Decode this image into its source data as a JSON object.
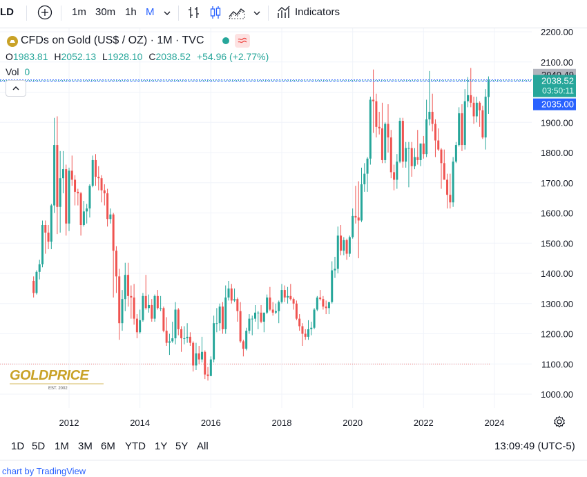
{
  "toolbar": {
    "symbol_fragment": "LD",
    "intervals": [
      "1m",
      "30m",
      "1h",
      "M"
    ],
    "active_interval": "M",
    "indicators_label": "Indicators"
  },
  "legend": {
    "title": "CFDs on Gold (US$ / OZ) · 1M · TVC",
    "open_label": "O",
    "open": "1983.81",
    "high_label": "H",
    "high": "2052.13",
    "low_label": "L",
    "low": "1928.10",
    "close_label": "C",
    "close": "2038.52",
    "change": "+54.96 (+2.77%)",
    "vol_label": "Vol",
    "vol": "0"
  },
  "price_tags": {
    "high_line": "2040.49",
    "last_price": "2038.52",
    "countdown": "03:50:11",
    "crosshair": "2035.00"
  },
  "watermark": {
    "brand": "GOLDPRICE",
    "sub": "EST. 2002"
  },
  "bottom": {
    "ranges": [
      "1D",
      "5D",
      "1M",
      "3M",
      "6M",
      "YTD",
      "1Y",
      "5Y",
      "All"
    ],
    "time": "13:09:49 (UTC-5)"
  },
  "footer": {
    "credit": "chart by TradingView"
  },
  "colors": {
    "up": "#26a69a",
    "down": "#ef5350",
    "accent": "#2962ff",
    "grid": "#f0f3fa"
  },
  "chart_data": {
    "type": "candlestick",
    "title": "CFDs on Gold (US$ / OZ) · 1M · TVC",
    "x_ticks": [
      "2012",
      "2014",
      "2016",
      "2018",
      "2020",
      "2022",
      "2024"
    ],
    "y_ticks": [
      "1000.00",
      "1100.00",
      "1200.00",
      "1300.00",
      "1400.00",
      "1500.00",
      "1600.00",
      "1700.00",
      "1800.00",
      "1900.00",
      "2000.00",
      "2100.00",
      "2200.00"
    ],
    "ylim": [
      1000,
      2200
    ],
    "horizontal_levels": [
      1100
    ],
    "candles": [
      {
        "t": "2011-01",
        "o": 1375,
        "h": 1390,
        "l": 1320,
        "c": 1335
      },
      {
        "t": "2011-02",
        "o": 1335,
        "h": 1410,
        "l": 1330,
        "c": 1405
      },
      {
        "t": "2011-03",
        "o": 1405,
        "h": 1445,
        "l": 1380,
        "c": 1430
      },
      {
        "t": "2011-04",
        "o": 1430,
        "h": 1575,
        "l": 1420,
        "c": 1560
      },
      {
        "t": "2011-05",
        "o": 1560,
        "h": 1575,
        "l": 1465,
        "c": 1535
      },
      {
        "t": "2011-06",
        "o": 1535,
        "h": 1560,
        "l": 1480,
        "c": 1505
      },
      {
        "t": "2011-07",
        "o": 1505,
        "h": 1630,
        "l": 1480,
        "c": 1625
      },
      {
        "t": "2011-08",
        "o": 1625,
        "h": 1915,
        "l": 1600,
        "c": 1825
      },
      {
        "t": "2011-09",
        "o": 1825,
        "h": 1920,
        "l": 1530,
        "c": 1620
      },
      {
        "t": "2011-10",
        "o": 1620,
        "h": 1805,
        "l": 1535,
        "c": 1715
      },
      {
        "t": "2011-11",
        "o": 1715,
        "h": 1805,
        "l": 1665,
        "c": 1745
      },
      {
        "t": "2011-12",
        "o": 1745,
        "h": 1760,
        "l": 1525,
        "c": 1565
      },
      {
        "t": "2012-01",
        "o": 1565,
        "h": 1750,
        "l": 1540,
        "c": 1740
      },
      {
        "t": "2012-02",
        "o": 1740,
        "h": 1790,
        "l": 1690,
        "c": 1710
      },
      {
        "t": "2012-03",
        "o": 1710,
        "h": 1725,
        "l": 1625,
        "c": 1670
      },
      {
        "t": "2012-04",
        "o": 1670,
        "h": 1680,
        "l": 1625,
        "c": 1665
      },
      {
        "t": "2012-05",
        "o": 1665,
        "h": 1670,
        "l": 1525,
        "c": 1560
      },
      {
        "t": "2012-06",
        "o": 1560,
        "h": 1640,
        "l": 1555,
        "c": 1605
      },
      {
        "t": "2012-07",
        "o": 1605,
        "h": 1630,
        "l": 1565,
        "c": 1615
      },
      {
        "t": "2012-08",
        "o": 1615,
        "h": 1695,
        "l": 1585,
        "c": 1690
      },
      {
        "t": "2012-09",
        "o": 1690,
        "h": 1790,
        "l": 1685,
        "c": 1775
      },
      {
        "t": "2012-10",
        "o": 1775,
        "h": 1795,
        "l": 1690,
        "c": 1720
      },
      {
        "t": "2012-11",
        "o": 1720,
        "h": 1755,
        "l": 1675,
        "c": 1715
      },
      {
        "t": "2012-12",
        "o": 1715,
        "h": 1725,
        "l": 1635,
        "c": 1675
      },
      {
        "t": "2013-01",
        "o": 1675,
        "h": 1695,
        "l": 1625,
        "c": 1665
      },
      {
        "t": "2013-02",
        "o": 1665,
        "h": 1680,
        "l": 1555,
        "c": 1580
      },
      {
        "t": "2013-03",
        "o": 1580,
        "h": 1615,
        "l": 1565,
        "c": 1595
      },
      {
        "t": "2013-04",
        "o": 1595,
        "h": 1600,
        "l": 1320,
        "c": 1475
      },
      {
        "t": "2013-05",
        "o": 1475,
        "h": 1490,
        "l": 1335,
        "c": 1390
      },
      {
        "t": "2013-06",
        "o": 1390,
        "h": 1415,
        "l": 1180,
        "c": 1235
      },
      {
        "t": "2013-07",
        "o": 1235,
        "h": 1345,
        "l": 1210,
        "c": 1315
      },
      {
        "t": "2013-08",
        "o": 1315,
        "h": 1435,
        "l": 1275,
        "c": 1395
      },
      {
        "t": "2013-09",
        "o": 1395,
        "h": 1435,
        "l": 1290,
        "c": 1325
      },
      {
        "t": "2013-10",
        "o": 1325,
        "h": 1360,
        "l": 1250,
        "c": 1320
      },
      {
        "t": "2013-11",
        "o": 1320,
        "h": 1365,
        "l": 1230,
        "c": 1250
      },
      {
        "t": "2013-12",
        "o": 1250,
        "h": 1265,
        "l": 1185,
        "c": 1205
      },
      {
        "t": "2014-01",
        "o": 1205,
        "h": 1280,
        "l": 1200,
        "c": 1245
      },
      {
        "t": "2014-02",
        "o": 1245,
        "h": 1335,
        "l": 1240,
        "c": 1325
      },
      {
        "t": "2014-03",
        "o": 1325,
        "h": 1395,
        "l": 1280,
        "c": 1285
      },
      {
        "t": "2014-04",
        "o": 1285,
        "h": 1330,
        "l": 1270,
        "c": 1295
      },
      {
        "t": "2014-05",
        "o": 1295,
        "h": 1315,
        "l": 1240,
        "c": 1250
      },
      {
        "t": "2014-06",
        "o": 1250,
        "h": 1330,
        "l": 1240,
        "c": 1325
      },
      {
        "t": "2014-07",
        "o": 1325,
        "h": 1345,
        "l": 1280,
        "c": 1285
      },
      {
        "t": "2014-08",
        "o": 1285,
        "h": 1325,
        "l": 1275,
        "c": 1285
      },
      {
        "t": "2014-09",
        "o": 1285,
        "h": 1290,
        "l": 1205,
        "c": 1210
      },
      {
        "t": "2014-10",
        "o": 1210,
        "h": 1255,
        "l": 1160,
        "c": 1170
      },
      {
        "t": "2014-11",
        "o": 1170,
        "h": 1200,
        "l": 1130,
        "c": 1175
      },
      {
        "t": "2014-12",
        "o": 1175,
        "h": 1240,
        "l": 1170,
        "c": 1185
      },
      {
        "t": "2015-01",
        "o": 1185,
        "h": 1305,
        "l": 1165,
        "c": 1280
      },
      {
        "t": "2015-02",
        "o": 1280,
        "h": 1285,
        "l": 1195,
        "c": 1215
      },
      {
        "t": "2015-03",
        "o": 1215,
        "h": 1225,
        "l": 1140,
        "c": 1185
      },
      {
        "t": "2015-04",
        "o": 1185,
        "h": 1225,
        "l": 1165,
        "c": 1185
      },
      {
        "t": "2015-05",
        "o": 1185,
        "h": 1235,
        "l": 1170,
        "c": 1190
      },
      {
        "t": "2015-06",
        "o": 1190,
        "h": 1205,
        "l": 1160,
        "c": 1170
      },
      {
        "t": "2015-07",
        "o": 1170,
        "h": 1175,
        "l": 1075,
        "c": 1095
      },
      {
        "t": "2015-08",
        "o": 1095,
        "h": 1170,
        "l": 1080,
        "c": 1135
      },
      {
        "t": "2015-09",
        "o": 1135,
        "h": 1160,
        "l": 1100,
        "c": 1115
      },
      {
        "t": "2015-10",
        "o": 1115,
        "h": 1190,
        "l": 1105,
        "c": 1140
      },
      {
        "t": "2015-11",
        "o": 1140,
        "h": 1145,
        "l": 1050,
        "c": 1065
      },
      {
        "t": "2015-12",
        "o": 1065,
        "h": 1090,
        "l": 1045,
        "c": 1060
      },
      {
        "t": "2016-01",
        "o": 1060,
        "h": 1125,
        "l": 1060,
        "c": 1115
      },
      {
        "t": "2016-02",
        "o": 1115,
        "h": 1260,
        "l": 1105,
        "c": 1235
      },
      {
        "t": "2016-03",
        "o": 1235,
        "h": 1285,
        "l": 1205,
        "c": 1235
      },
      {
        "t": "2016-04",
        "o": 1235,
        "h": 1300,
        "l": 1210,
        "c": 1290
      },
      {
        "t": "2016-05",
        "o": 1290,
        "h": 1305,
        "l": 1200,
        "c": 1215
      },
      {
        "t": "2016-06",
        "o": 1215,
        "h": 1360,
        "l": 1200,
        "c": 1320
      },
      {
        "t": "2016-07",
        "o": 1320,
        "h": 1375,
        "l": 1310,
        "c": 1350
      },
      {
        "t": "2016-08",
        "o": 1350,
        "h": 1365,
        "l": 1300,
        "c": 1310
      },
      {
        "t": "2016-09",
        "o": 1310,
        "h": 1350,
        "l": 1305,
        "c": 1315
      },
      {
        "t": "2016-10",
        "o": 1315,
        "h": 1320,
        "l": 1240,
        "c": 1275
      },
      {
        "t": "2016-11",
        "o": 1275,
        "h": 1305,
        "l": 1170,
        "c": 1175
      },
      {
        "t": "2016-12",
        "o": 1175,
        "h": 1180,
        "l": 1125,
        "c": 1150
      },
      {
        "t": "2017-01",
        "o": 1150,
        "h": 1220,
        "l": 1145,
        "c": 1210
      },
      {
        "t": "2017-02",
        "o": 1210,
        "h": 1265,
        "l": 1200,
        "c": 1250
      },
      {
        "t": "2017-03",
        "o": 1250,
        "h": 1260,
        "l": 1195,
        "c": 1250
      },
      {
        "t": "2017-04",
        "o": 1250,
        "h": 1295,
        "l": 1240,
        "c": 1270
      },
      {
        "t": "2017-05",
        "o": 1270,
        "h": 1275,
        "l": 1215,
        "c": 1270
      },
      {
        "t": "2017-06",
        "o": 1270,
        "h": 1295,
        "l": 1235,
        "c": 1240
      },
      {
        "t": "2017-07",
        "o": 1240,
        "h": 1270,
        "l": 1205,
        "c": 1270
      },
      {
        "t": "2017-08",
        "o": 1270,
        "h": 1330,
        "l": 1265,
        "c": 1320
      },
      {
        "t": "2017-09",
        "o": 1320,
        "h": 1355,
        "l": 1275,
        "c": 1280
      },
      {
        "t": "2017-10",
        "o": 1280,
        "h": 1305,
        "l": 1260,
        "c": 1270
      },
      {
        "t": "2017-11",
        "o": 1270,
        "h": 1300,
        "l": 1265,
        "c": 1275
      },
      {
        "t": "2017-12",
        "o": 1275,
        "h": 1310,
        "l": 1235,
        "c": 1305
      },
      {
        "t": "2018-01",
        "o": 1305,
        "h": 1365,
        "l": 1300,
        "c": 1345
      },
      {
        "t": "2018-02",
        "o": 1345,
        "h": 1360,
        "l": 1305,
        "c": 1320
      },
      {
        "t": "2018-03",
        "o": 1320,
        "h": 1355,
        "l": 1300,
        "c": 1325
      },
      {
        "t": "2018-04",
        "o": 1325,
        "h": 1365,
        "l": 1310,
        "c": 1315
      },
      {
        "t": "2018-05",
        "o": 1315,
        "h": 1320,
        "l": 1280,
        "c": 1300
      },
      {
        "t": "2018-06",
        "o": 1300,
        "h": 1310,
        "l": 1245,
        "c": 1250
      },
      {
        "t": "2018-07",
        "o": 1250,
        "h": 1265,
        "l": 1210,
        "c": 1225
      },
      {
        "t": "2018-08",
        "o": 1225,
        "h": 1235,
        "l": 1160,
        "c": 1200
      },
      {
        "t": "2018-09",
        "o": 1200,
        "h": 1215,
        "l": 1180,
        "c": 1190
      },
      {
        "t": "2018-10",
        "o": 1190,
        "h": 1245,
        "l": 1180,
        "c": 1215
      },
      {
        "t": "2018-11",
        "o": 1215,
        "h": 1240,
        "l": 1195,
        "c": 1220
      },
      {
        "t": "2018-12",
        "o": 1220,
        "h": 1285,
        "l": 1215,
        "c": 1280
      },
      {
        "t": "2019-01",
        "o": 1280,
        "h": 1325,
        "l": 1275,
        "c": 1320
      },
      {
        "t": "2019-02",
        "o": 1320,
        "h": 1345,
        "l": 1310,
        "c": 1315
      },
      {
        "t": "2019-03",
        "o": 1315,
        "h": 1325,
        "l": 1280,
        "c": 1290
      },
      {
        "t": "2019-04",
        "o": 1290,
        "h": 1310,
        "l": 1265,
        "c": 1285
      },
      {
        "t": "2019-05",
        "o": 1285,
        "h": 1305,
        "l": 1265,
        "c": 1305
      },
      {
        "t": "2019-06",
        "o": 1305,
        "h": 1440,
        "l": 1300,
        "c": 1410
      },
      {
        "t": "2019-07",
        "o": 1410,
        "h": 1455,
        "l": 1385,
        "c": 1415
      },
      {
        "t": "2019-08",
        "o": 1415,
        "h": 1555,
        "l": 1400,
        "c": 1525
      },
      {
        "t": "2019-09",
        "o": 1525,
        "h": 1560,
        "l": 1460,
        "c": 1475
      },
      {
        "t": "2019-10",
        "o": 1475,
        "h": 1520,
        "l": 1460,
        "c": 1510
      },
      {
        "t": "2019-11",
        "o": 1510,
        "h": 1515,
        "l": 1445,
        "c": 1465
      },
      {
        "t": "2019-12",
        "o": 1465,
        "h": 1525,
        "l": 1455,
        "c": 1520
      },
      {
        "t": "2020-01",
        "o": 1520,
        "h": 1615,
        "l": 1515,
        "c": 1590
      },
      {
        "t": "2020-02",
        "o": 1590,
        "h": 1690,
        "l": 1565,
        "c": 1585
      },
      {
        "t": "2020-03",
        "o": 1585,
        "h": 1705,
        "l": 1450,
        "c": 1575
      },
      {
        "t": "2020-04",
        "o": 1575,
        "h": 1750,
        "l": 1570,
        "c": 1695
      },
      {
        "t": "2020-05",
        "o": 1695,
        "h": 1765,
        "l": 1670,
        "c": 1730
      },
      {
        "t": "2020-06",
        "o": 1730,
        "h": 1785,
        "l": 1670,
        "c": 1780
      },
      {
        "t": "2020-07",
        "o": 1780,
        "h": 1985,
        "l": 1760,
        "c": 1975
      },
      {
        "t": "2020-08",
        "o": 1975,
        "h": 2075,
        "l": 1865,
        "c": 1970
      },
      {
        "t": "2020-09",
        "o": 1970,
        "h": 1995,
        "l": 1850,
        "c": 1885
      },
      {
        "t": "2020-10",
        "o": 1885,
        "h": 1935,
        "l": 1860,
        "c": 1880
      },
      {
        "t": "2020-11",
        "o": 1880,
        "h": 1965,
        "l": 1765,
        "c": 1775
      },
      {
        "t": "2020-12",
        "o": 1775,
        "h": 1900,
        "l": 1765,
        "c": 1895
      },
      {
        "t": "2021-01",
        "o": 1895,
        "h": 1960,
        "l": 1800,
        "c": 1850
      },
      {
        "t": "2021-02",
        "o": 1850,
        "h": 1875,
        "l": 1715,
        "c": 1735
      },
      {
        "t": "2021-03",
        "o": 1735,
        "h": 1760,
        "l": 1675,
        "c": 1710
      },
      {
        "t": "2021-04",
        "o": 1710,
        "h": 1795,
        "l": 1680,
        "c": 1770
      },
      {
        "t": "2021-05",
        "o": 1770,
        "h": 1915,
        "l": 1765,
        "c": 1905
      },
      {
        "t": "2021-06",
        "o": 1905,
        "h": 1915,
        "l": 1750,
        "c": 1770
      },
      {
        "t": "2021-07",
        "o": 1770,
        "h": 1835,
        "l": 1750,
        "c": 1815
      },
      {
        "t": "2021-08",
        "o": 1815,
        "h": 1835,
        "l": 1685,
        "c": 1815
      },
      {
        "t": "2021-09",
        "o": 1815,
        "h": 1835,
        "l": 1720,
        "c": 1755
      },
      {
        "t": "2021-10",
        "o": 1755,
        "h": 1815,
        "l": 1745,
        "c": 1785
      },
      {
        "t": "2021-11",
        "o": 1785,
        "h": 1875,
        "l": 1760,
        "c": 1775
      },
      {
        "t": "2021-12",
        "o": 1775,
        "h": 1830,
        "l": 1755,
        "c": 1830
      },
      {
        "t": "2022-01",
        "o": 1830,
        "h": 1855,
        "l": 1780,
        "c": 1795
      },
      {
        "t": "2022-02",
        "o": 1795,
        "h": 1975,
        "l": 1785,
        "c": 1910
      },
      {
        "t": "2022-03",
        "o": 1910,
        "h": 2070,
        "l": 1890,
        "c": 1935
      },
      {
        "t": "2022-04",
        "o": 1935,
        "h": 1995,
        "l": 1870,
        "c": 1895
      },
      {
        "t": "2022-05",
        "o": 1895,
        "h": 1910,
        "l": 1785,
        "c": 1840
      },
      {
        "t": "2022-06",
        "o": 1840,
        "h": 1880,
        "l": 1805,
        "c": 1810
      },
      {
        "t": "2022-07",
        "o": 1810,
        "h": 1815,
        "l": 1680,
        "c": 1765
      },
      {
        "t": "2022-08",
        "o": 1765,
        "h": 1810,
        "l": 1710,
        "c": 1710
      },
      {
        "t": "2022-09",
        "o": 1710,
        "h": 1730,
        "l": 1615,
        "c": 1660
      },
      {
        "t": "2022-10",
        "o": 1660,
        "h": 1730,
        "l": 1615,
        "c": 1635
      },
      {
        "t": "2022-11",
        "o": 1635,
        "h": 1785,
        "l": 1620,
        "c": 1770
      },
      {
        "t": "2022-12",
        "o": 1770,
        "h": 1835,
        "l": 1765,
        "c": 1825
      },
      {
        "t": "2023-01",
        "o": 1825,
        "h": 1950,
        "l": 1820,
        "c": 1930
      },
      {
        "t": "2023-02",
        "o": 1930,
        "h": 1960,
        "l": 1805,
        "c": 1825
      },
      {
        "t": "2023-03",
        "o": 1825,
        "h": 2010,
        "l": 1810,
        "c": 1970
      },
      {
        "t": "2023-04",
        "o": 1970,
        "h": 2050,
        "l": 1950,
        "c": 1990
      },
      {
        "t": "2023-05",
        "o": 1990,
        "h": 2080,
        "l": 1950,
        "c": 1965
      },
      {
        "t": "2023-06",
        "o": 1965,
        "h": 1985,
        "l": 1895,
        "c": 1920
      },
      {
        "t": "2023-07",
        "o": 1920,
        "h": 1985,
        "l": 1900,
        "c": 1965
      },
      {
        "t": "2023-08",
        "o": 1965,
        "h": 1970,
        "l": 1885,
        "c": 1940
      },
      {
        "t": "2023-09",
        "o": 1940,
        "h": 1955,
        "l": 1845,
        "c": 1850
      },
      {
        "t": "2023-10",
        "o": 1850,
        "h": 2010,
        "l": 1810,
        "c": 1985
      },
      {
        "t": "2023-11",
        "o": 1983.81,
        "h": 2052.13,
        "l": 1928.1,
        "c": 2038.52
      }
    ]
  }
}
